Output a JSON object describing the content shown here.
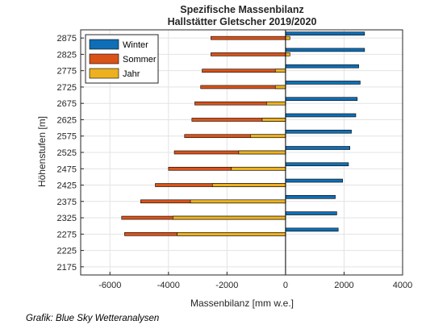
{
  "chart_data": {
    "type": "bar",
    "orientation": "horizontal",
    "title": "Spezifische Massenbilanz",
    "subtitle": "Hallstätter Gletscher 2019/2020",
    "xlabel": "Massenbilanz [mm w.e.]",
    "ylabel": "Höhenstufen [m]",
    "xlim": [
      -7000,
      4000
    ],
    "xticks": [
      "-6000",
      "-4000",
      "-2000",
      "0",
      "2000",
      "4000"
    ],
    "xtick_values": [
      -6000,
      -4000,
      -2000,
      0,
      2000,
      4000
    ],
    "categories": [
      "2875",
      "2825",
      "2775",
      "2725",
      "2675",
      "2625",
      "2575",
      "2525",
      "2475",
      "2425",
      "2375",
      "2325",
      "2275",
      "2225",
      "2175"
    ],
    "series": [
      {
        "name": "Winter",
        "color": "#0f6eb5",
        "values": [
          2700,
          2700,
          2500,
          2550,
          2450,
          2400,
          2250,
          2200,
          2150,
          1950,
          1700,
          1750,
          1800,
          null,
          null
        ]
      },
      {
        "name": "Sommer",
        "color": "#d95319",
        "values": [
          -2550,
          -2550,
          -2850,
          -2900,
          -3100,
          -3200,
          -3450,
          -3800,
          -4000,
          -4450,
          -4950,
          -5600,
          -5500,
          null,
          null
        ]
      },
      {
        "name": "Jahr",
        "color": "#edb120",
        "values": [
          150,
          150,
          -350,
          -350,
          -650,
          -800,
          -1200,
          -1600,
          -1850,
          -2500,
          -3250,
          -3850,
          -3700,
          null,
          null
        ]
      }
    ],
    "legend_position": "top-left",
    "grid": true
  },
  "credit": "Grafik: Blue Sky Wetteranalysen"
}
